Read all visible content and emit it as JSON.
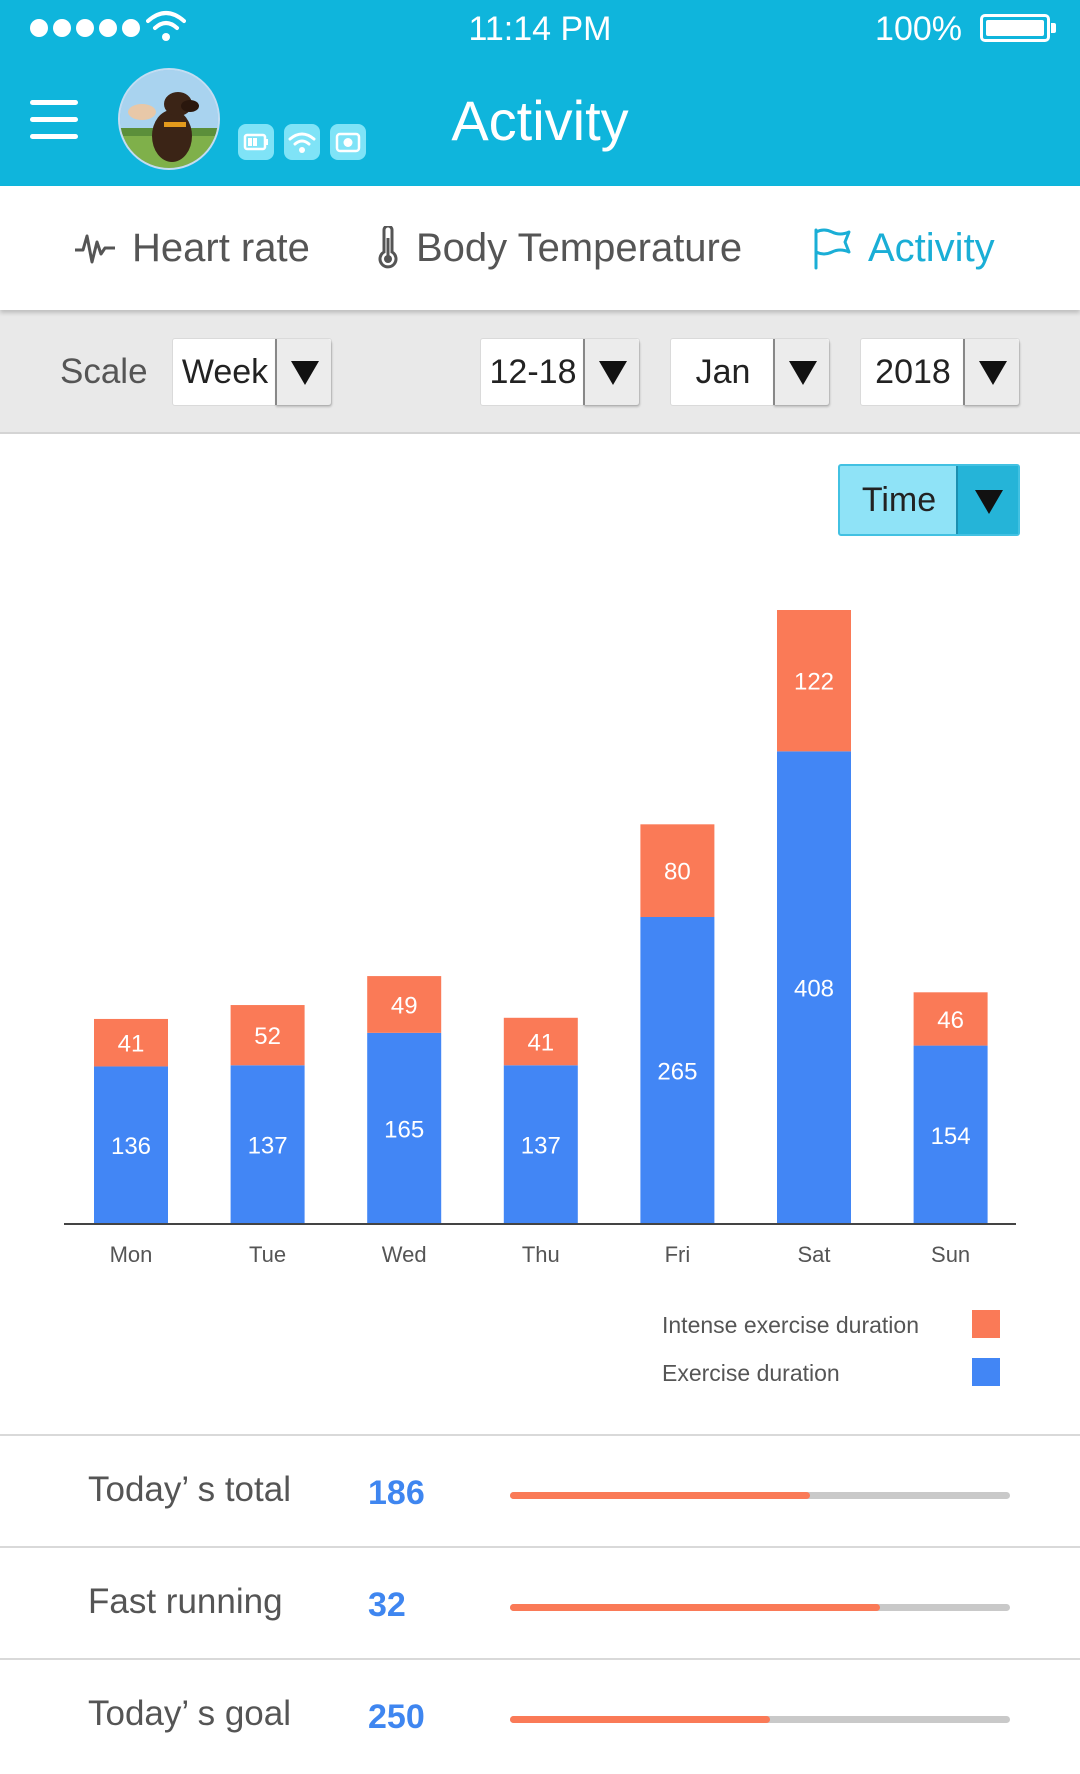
{
  "status_bar": {
    "time": "11:14 PM",
    "battery": "100%"
  },
  "header": {
    "title": "Activity"
  },
  "tabs": [
    {
      "label": "Heart rate",
      "icon": "heartbeat-icon",
      "active": false
    },
    {
      "label": "Body Temperature",
      "icon": "thermometer-icon",
      "active": false
    },
    {
      "label": "Activity",
      "icon": "flag-icon",
      "active": true
    }
  ],
  "filters": {
    "scale_label": "Scale",
    "scale": "Week",
    "range": "12-18",
    "month": "Jan",
    "year": "2018"
  },
  "metric_select": "Time",
  "colors": {
    "header": "#0fb5dc",
    "accent": "#1aaed6",
    "exercise": "#4286f5",
    "intense": "#fa7a57",
    "value": "#3f86f0"
  },
  "chart_data": {
    "type": "bar",
    "stacked": true,
    "categories": [
      "Mon",
      "Tue",
      "Wed",
      "Thu",
      "Fri",
      "Sat",
      "Sun"
    ],
    "series": [
      {
        "name": "Exercise duration",
        "color": "#4286f5",
        "values": [
          136,
          137,
          165,
          137,
          265,
          408,
          154
        ]
      },
      {
        "name": "Intense exercise duration",
        "color": "#fa7a57",
        "values": [
          41,
          52,
          49,
          41,
          80,
          122,
          46
        ]
      }
    ],
    "ylim": [
      0,
      530
    ],
    "legend_position": "bottom-right",
    "grid": false
  },
  "legend": [
    {
      "label": "Intense exercise duration",
      "color": "#fa7a57"
    },
    {
      "label": "Exercise duration",
      "color": "#4286f5"
    }
  ],
  "stats": [
    {
      "label": "Today’ s total",
      "value": "186",
      "progress": 0.6
    },
    {
      "label": "Fast running",
      "value": "32",
      "progress": 0.74
    },
    {
      "label": "Today’ s goal",
      "value": "250",
      "progress": 0.52
    }
  ]
}
